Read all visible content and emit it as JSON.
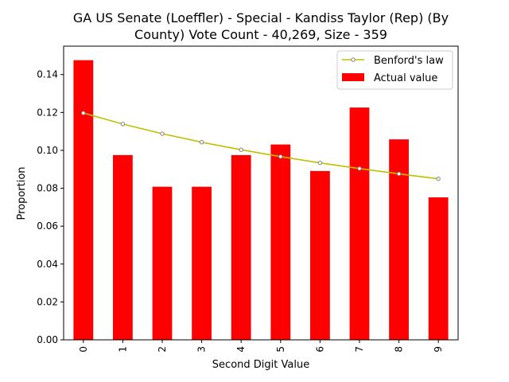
{
  "chart_data": {
    "type": "bar",
    "title_lines": [
      "GA US Senate (Loeffler) - Special - Kandiss Taylor (Rep) (By",
      "County) Vote Count - 40,269, Size - 359"
    ],
    "xlabel": "Second Digit Value",
    "ylabel": "Proportion",
    "categories": [
      "0",
      "1",
      "2",
      "3",
      "4",
      "5",
      "6",
      "7",
      "8",
      "9"
    ],
    "series": [
      {
        "name": "Actual value",
        "kind": "bar",
        "color": "#ff0000",
        "values": [
          0.1476,
          0.0975,
          0.0808,
          0.0808,
          0.0975,
          0.1031,
          0.0891,
          0.1226,
          0.1058,
          0.0752
        ]
      },
      {
        "name": "Benford's law",
        "kind": "line",
        "color": "#bfbf00",
        "values": [
          0.1197,
          0.1139,
          0.1088,
          0.1043,
          0.1003,
          0.0967,
          0.0934,
          0.0904,
          0.0876,
          0.085
        ]
      }
    ],
    "ylim": [
      0,
      0.155
    ],
    "yticks": [
      "0.00",
      "0.02",
      "0.04",
      "0.06",
      "0.08",
      "0.10",
      "0.12",
      "0.14"
    ],
    "legend_position": "upper right",
    "grid": false
  }
}
